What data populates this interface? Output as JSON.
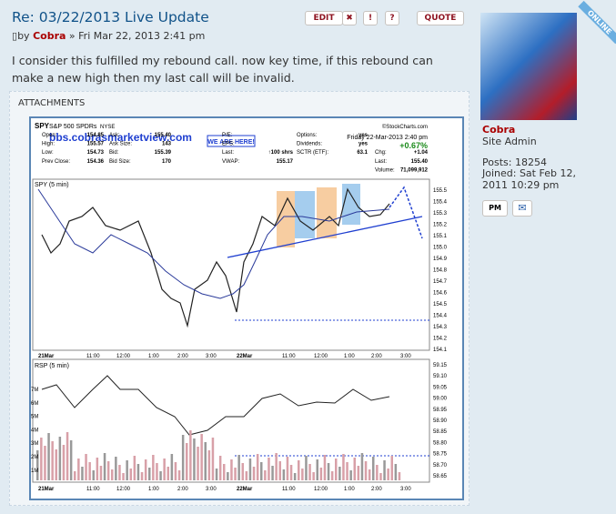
{
  "post": {
    "title": "Re: 03/22/2013 Live Update",
    "buttons": [
      "EDIT",
      "✖",
      "!",
      "?",
      "QUOTE"
    ],
    "byline": {
      "prefix": "by",
      "author": "Cobra",
      "date": "» Fri Mar 22, 2013 2:41 pm"
    },
    "body": "I consider this fulfilled my rebound call. now key time, if this rebound can make a new high then my last call will be invalid.",
    "attachments_label": "ATTACHMENTS"
  },
  "chart_image": {
    "symbol": "SPY",
    "name": "S&P 500 SPDRs",
    "exchange": "NYSE",
    "credit": "©StockCharts.com",
    "watermark": "bbs.cobrasmarketview.com",
    "callout": "WE ARE HERE!",
    "date": "Friday 22-Mar-2013 2:40 pm",
    "change_pct": "+0.67%",
    "fields": [
      [
        "Open:",
        "154.85"
      ],
      [
        "High:",
        "155.57"
      ],
      [
        "Low:",
        "154.73"
      ],
      [
        "Prev Close:",
        "154.36"
      ],
      [
        "Ask:",
        "155.40"
      ],
      [
        "Ask Size:",
        "143"
      ],
      [
        "Bid:",
        "155.39"
      ],
      [
        "Bid Size:",
        "170"
      ],
      [
        "P/E:",
        ""
      ],
      [
        "EPS:",
        ""
      ],
      [
        "Last:",
        "↑100 shrs"
      ],
      [
        "VWAP:",
        "155.17"
      ],
      [
        "Options:",
        "yes"
      ],
      [
        "Dividends:",
        "yes"
      ],
      [
        "SCTR (ETF):",
        "63.1"
      ],
      [
        "Chg:",
        "+1.04"
      ],
      [
        "Last:",
        "155.40"
      ],
      [
        "Volume:",
        "71,099,912"
      ]
    ],
    "price_panel": "SPY (5 min)",
    "lower_panel": "RSP (5 min)",
    "price_ticks": [
      "155.5",
      "155.4",
      "155.3",
      "155.2",
      "155.1",
      "155.0",
      "154.9",
      "154.8",
      "154.7",
      "154.6",
      "154.5",
      "154.4",
      "154.3",
      "154.2",
      "154.1"
    ],
    "volume_ticks": [
      "7M",
      "6M",
      "5M",
      "4M",
      "3M",
      "2M",
      "1M"
    ],
    "rsp_ticks": [
      "59.15",
      "59.10",
      "59.05",
      "59.00",
      "58.95",
      "58.90",
      "58.85",
      "58.80",
      "58.75",
      "58.70",
      "58.65"
    ],
    "time_labels": [
      "21Mar",
      "11:00",
      "12:00",
      "1:00",
      "2:00",
      "3:00",
      "22Mar",
      "11:00",
      "12:00",
      "1:00",
      "2:00",
      "3:00"
    ]
  },
  "profile": {
    "status": "ONLINE",
    "name": "Cobra",
    "rank": "Site Admin",
    "posts": "Posts: 18254",
    "joined": "Joined: Sat Feb 12, 2011 10:29 pm",
    "pm": "PM"
  }
}
